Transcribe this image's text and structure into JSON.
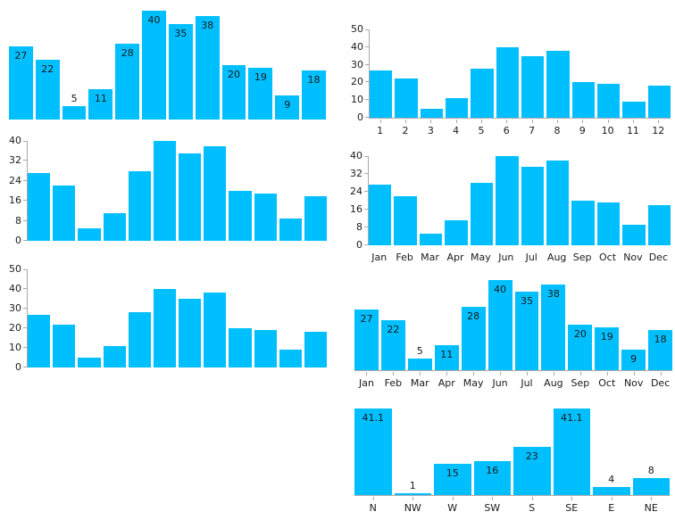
{
  "colors": {
    "bar": "#00BFFF",
    "axis": "#A9A9A9",
    "text": "#1A1A1A"
  },
  "chart_data": [
    {
      "type": "bar",
      "name": "monthly-bars-value-labels-only",
      "values": [
        27,
        22,
        5,
        11,
        28,
        40,
        35,
        38,
        20,
        19,
        9,
        18
      ],
      "categories": null,
      "value_labels": true,
      "y_ticks": null,
      "ymax": 40,
      "spines": {
        "left": false,
        "bottom": false
      },
      "y_tick_marks": false,
      "x_tick_marks": false,
      "grid": false,
      "legend": null,
      "title": "",
      "xlabel": "",
      "ylabel": ""
    },
    {
      "type": "bar",
      "name": "monthly-bars-numeric-x-axis",
      "values": [
        27,
        22,
        5,
        11,
        28,
        40,
        35,
        38,
        20,
        19,
        9,
        18
      ],
      "categories": [
        "1",
        "2",
        "3",
        "4",
        "5",
        "6",
        "7",
        "8",
        "9",
        "10",
        "11",
        "12"
      ],
      "value_labels": false,
      "y_ticks": [
        0,
        10,
        20,
        30,
        40,
        50
      ],
      "ymax": 50,
      "spines": {
        "left": true,
        "bottom": true
      },
      "y_tick_marks": true,
      "x_tick_marks": true,
      "grid": false,
      "legend": null,
      "title": "",
      "xlabel": "",
      "ylabel": "",
      "ylim": [
        0,
        50
      ]
    },
    {
      "type": "bar",
      "name": "monthly-bars-yaxis-step8",
      "values": [
        27,
        22,
        5,
        11,
        28,
        40,
        35,
        38,
        20,
        19,
        9,
        18
      ],
      "categories": null,
      "value_labels": false,
      "y_ticks": [
        0,
        8,
        16,
        24,
        32,
        40
      ],
      "ymax": 40,
      "spines": {
        "left": true,
        "bottom": false
      },
      "y_tick_marks": true,
      "x_tick_marks": false,
      "grid": false,
      "legend": null,
      "title": "",
      "xlabel": "",
      "ylabel": "",
      "ylim": [
        0,
        40
      ]
    },
    {
      "type": "bar",
      "name": "monthly-bars-month-names-yaxis",
      "values": [
        27,
        22,
        5,
        11,
        28,
        40,
        35,
        38,
        20,
        19,
        9,
        18
      ],
      "categories": [
        "Jan",
        "Feb",
        "Mar",
        "Apr",
        "May",
        "Jun",
        "Jul",
        "Aug",
        "Sep",
        "Oct",
        "Nov",
        "Dec"
      ],
      "value_labels": false,
      "y_ticks": [
        0,
        8,
        16,
        24,
        32,
        40
      ],
      "ymax": 40,
      "spines": {
        "left": true,
        "bottom": false
      },
      "y_tick_marks": true,
      "x_tick_marks": false,
      "grid": false,
      "legend": null,
      "title": "",
      "xlabel": "",
      "ylabel": "",
      "ylim": [
        0,
        40
      ]
    },
    {
      "type": "bar",
      "name": "monthly-bars-yaxis-step10",
      "values": [
        27,
        22,
        5,
        11,
        28,
        40,
        35,
        38,
        20,
        19,
        9,
        18
      ],
      "categories": null,
      "value_labels": false,
      "y_ticks": [
        0,
        10,
        20,
        30,
        40,
        50
      ],
      "ymax": 50,
      "spines": {
        "left": true,
        "bottom": false
      },
      "y_tick_marks": true,
      "x_tick_marks": false,
      "grid": false,
      "legend": null,
      "title": "",
      "xlabel": "",
      "ylabel": "",
      "ylim": [
        0,
        50
      ]
    },
    {
      "type": "bar",
      "name": "monthly-bars-month-names-value-labels",
      "values": [
        27,
        22,
        5,
        11,
        28,
        40,
        35,
        38,
        20,
        19,
        9,
        18
      ],
      "categories": [
        "Jan",
        "Feb",
        "Mar",
        "Apr",
        "May",
        "Jun",
        "Jul",
        "Aug",
        "Sep",
        "Oct",
        "Nov",
        "Dec"
      ],
      "value_labels": true,
      "y_ticks": null,
      "ymax": 40,
      "spines": {
        "left": false,
        "bottom": true
      },
      "y_tick_marks": false,
      "x_tick_marks": true,
      "grid": false,
      "legend": null,
      "title": "",
      "xlabel": "",
      "ylabel": ""
    },
    {
      "type": "bar",
      "name": "wind-direction-bars",
      "values": [
        41.1,
        1,
        15,
        16,
        23,
        41.1,
        4,
        8
      ],
      "categories": [
        "N",
        "NW",
        "W",
        "SW",
        "S",
        "SE",
        "E",
        "NE"
      ],
      "value_labels": true,
      "y_ticks": null,
      "ymax": 41.1,
      "spines": {
        "left": false,
        "bottom": true
      },
      "y_tick_marks": false,
      "x_tick_marks": true,
      "grid": false,
      "legend": null,
      "title": "",
      "xlabel": "",
      "ylabel": ""
    }
  ]
}
